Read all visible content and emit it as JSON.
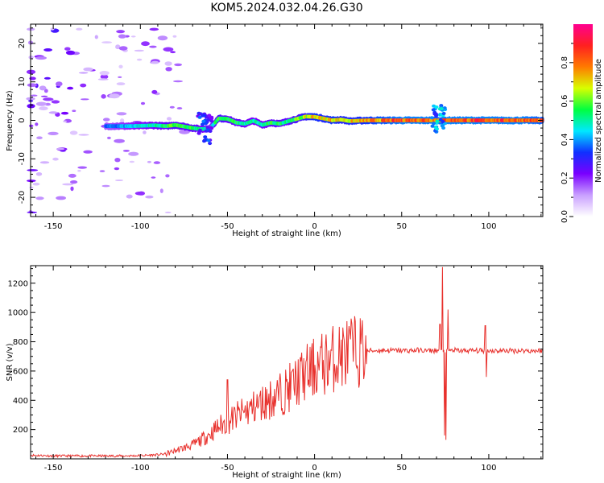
{
  "figure": {
    "title": "KOM5.2024.032.04.26.G30"
  },
  "chart_data": [
    {
      "type": "heatmap",
      "xlabel": "Height of straight line (km)",
      "ylabel": "Frequency (Hz)",
      "xlim": [
        -163,
        131
      ],
      "ylim": [
        -25,
        25
      ],
      "xticks": [
        -150,
        -100,
        -50,
        0,
        50,
        100
      ],
      "xtick_labels": [
        "-150",
        "-100",
        "-50",
        "0",
        "50",
        "100"
      ],
      "yticks": [
        -20,
        -10,
        0,
        10,
        20
      ],
      "ytick_labels": [
        "-20",
        "-10",
        "0",
        "10",
        "20"
      ],
      "colorbar": {
        "label": "Normalized spectral amplitude",
        "range": [
          0,
          1
        ],
        "ticks": [
          0,
          0.2,
          0.4,
          0.6,
          0.8
        ],
        "tick_labels": [
          "0.0",
          "0.2",
          "0.4",
          "0.6",
          "0.8"
        ],
        "colors": [
          "#ffffff",
          "#c9a0ff",
          "#7a00ff",
          "#1030ff",
          "#00e8ff",
          "#00ff40",
          "#d8ff00",
          "#ff7a00",
          "#ff2020",
          "#ff0090"
        ]
      },
      "ridge": {
        "x": [
          -120,
          -105,
          -92,
          -85,
          -80,
          -75,
          -70,
          -65,
          -60,
          -55,
          -50,
          -45,
          -40,
          -35,
          -30,
          -25,
          -20,
          -15,
          -10,
          -5,
          0,
          5,
          10,
          15,
          20,
          30,
          40,
          50,
          60,
          65,
          70,
          75,
          80,
          90,
          100,
          110,
          120,
          131
        ],
        "freq": [
          -1.5,
          -1.5,
          -1.3,
          -1.5,
          -1.2,
          -1.6,
          -2.0,
          -2.3,
          -2.0,
          0.5,
          0.4,
          -0.6,
          -0.9,
          -0.1,
          -1.2,
          -0.6,
          -0.9,
          -0.2,
          0.4,
          1.0,
          0.9,
          0.5,
          0.0,
          0.2,
          -0.2,
          0.0,
          0.0,
          0.0,
          0.0,
          0.0,
          0.0,
          0.0,
          0.0,
          0.0,
          0.0,
          0.0,
          0.0,
          0.0
        ],
        "level": [
          0.35,
          0.45,
          0.5,
          0.55,
          0.6,
          0.55,
          0.55,
          0.5,
          0.45,
          0.6,
          0.55,
          0.55,
          0.5,
          0.5,
          0.5,
          0.55,
          0.55,
          0.55,
          0.6,
          0.65,
          0.75,
          0.7,
          0.75,
          0.7,
          0.7,
          0.75,
          0.8,
          0.85,
          0.85,
          0.85,
          0.8,
          0.85,
          0.85,
          0.85,
          0.85,
          0.85,
          0.85,
          0.8
        ]
      },
      "disturbances": [
        {
          "x": 71,
          "freq_range": [
            -3,
            4
          ],
          "level": 0.45
        },
        {
          "x": -63,
          "freq_range": [
            -6,
            2
          ],
          "level": 0.35
        }
      ]
    },
    {
      "type": "line",
      "xlabel": "Height of straight line (km)",
      "ylabel": "SNR (v/v)",
      "xlim": [
        -163,
        131
      ],
      "ylim": [
        0,
        1320
      ],
      "xticks": [
        -150,
        -100,
        -50,
        0,
        50,
        100
      ],
      "xtick_labels": [
        "-150",
        "-100",
        "-50",
        "0",
        "50",
        "100"
      ],
      "yticks": [
        200,
        400,
        600,
        800,
        1000,
        1200
      ],
      "ytick_labels": [
        "200",
        "400",
        "600",
        "800",
        "1000",
        "1200"
      ],
      "color": "#e8302c",
      "series": [
        {
          "x": [
            -163,
            -150,
            -130,
            -110,
            -100,
            -90,
            -85,
            -80,
            -75,
            -70,
            -65,
            -60,
            -55,
            -50,
            -45,
            -40,
            -35,
            -30,
            -25,
            -20,
            -15,
            -10,
            -5,
            0,
            5,
            10,
            15,
            20,
            25,
            30,
            35,
            40,
            45,
            50,
            55,
            60,
            65,
            70,
            75,
            80,
            85,
            90,
            95,
            100,
            105,
            110,
            115,
            120,
            125,
            131
          ],
          "y": [
            25,
            20,
            20,
            20,
            22,
            28,
            35,
            55,
            75,
            95,
            130,
            170,
            220,
            250,
            290,
            320,
            350,
            380,
            410,
            440,
            480,
            530,
            580,
            620,
            650,
            680,
            710,
            730,
            735,
            738,
            740,
            742,
            740,
            740,
            740,
            742,
            738,
            740,
            740,
            742,
            738,
            740,
            738,
            740,
            738,
            740,
            738,
            740,
            738,
            740
          ],
          "spikes": [
            {
              "x": -50,
              "y": 540
            },
            {
              "x": -25,
              "y": 440
            },
            {
              "x": 72,
              "y": 920
            },
            {
              "x": 73.5,
              "y": 1310
            },
            {
              "x": 74.5,
              "y": 160
            },
            {
              "x": 75.5,
              "y": 130
            },
            {
              "x": 76.5,
              "y": 1020
            },
            {
              "x": 98,
              "y": 910
            },
            {
              "x": 98.5,
              "y": 560
            }
          ]
        }
      ]
    }
  ]
}
